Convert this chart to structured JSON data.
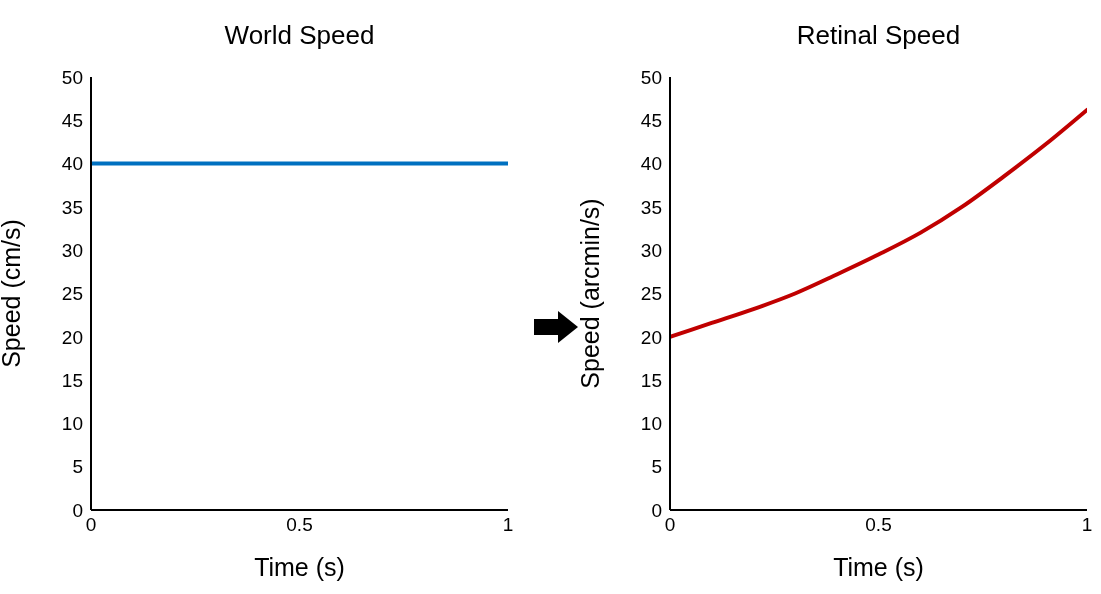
{
  "chart_data": [
    {
      "type": "line",
      "title": "World Speed",
      "xlabel": "Time (s)",
      "ylabel": "Speed (cm/s)",
      "x": [
        0,
        1
      ],
      "values": [
        40,
        40
      ],
      "color": "#0070c0",
      "xlim": [
        0,
        1
      ],
      "xticks": [
        0,
        0.5,
        1
      ],
      "ylim": [
        0,
        50
      ],
      "yticks": [
        0,
        5,
        10,
        15,
        20,
        25,
        30,
        35,
        40,
        45,
        50
      ],
      "grid": false,
      "marker": "none",
      "line_style": "solid"
    },
    {
      "type": "line",
      "title": "Retinal Speed",
      "xlabel": "Time (s)",
      "ylabel": "Speed (arcmin/s)",
      "x": [
        0,
        0.1,
        0.2,
        0.3,
        0.4,
        0.5,
        0.6,
        0.7,
        0.8,
        0.9,
        1
      ],
      "values": [
        20,
        21.6,
        23.2,
        25,
        27.2,
        29.5,
        32,
        35,
        38.5,
        42.2,
        46.2
      ],
      "color": "#c00000",
      "xlim": [
        0,
        1
      ],
      "xticks": [
        0,
        0.5,
        1
      ],
      "ylim": [
        0,
        50
      ],
      "yticks": [
        0,
        5,
        10,
        15,
        20,
        25,
        30,
        35,
        40,
        45,
        50
      ],
      "grid": false,
      "marker": "none",
      "line_style": "solid"
    }
  ]
}
